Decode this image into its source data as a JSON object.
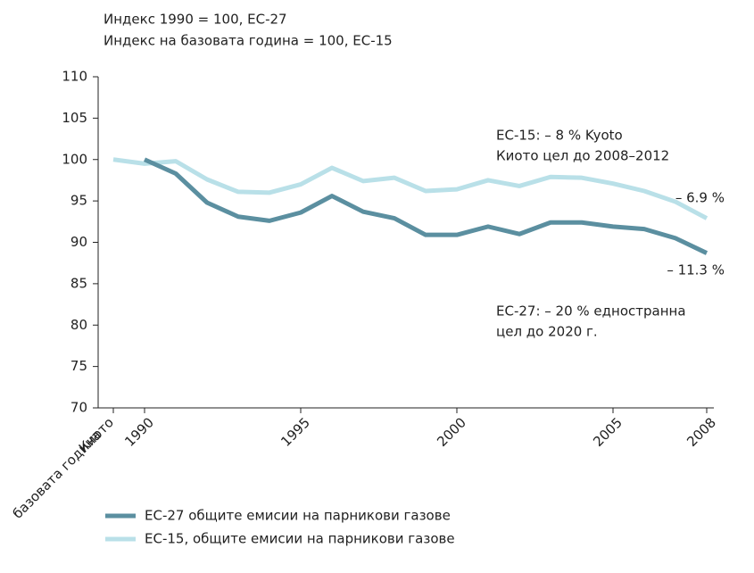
{
  "chart_data": {
    "type": "line",
    "header": [
      "Индекс 1990 = 100, ЕС-27",
      "Индекс на базовата година = 100, ЕС-15"
    ],
    "categories": [
      [
        "Киото",
        "базовата година"
      ],
      "1990",
      null,
      null,
      null,
      null,
      "1995",
      null,
      null,
      null,
      null,
      "2000",
      null,
      null,
      null,
      null,
      "2005",
      null,
      null,
      "2008"
    ],
    "series": [
      {
        "name": "ЕС-27 общите емисии на парникови газове",
        "color": "#5b8fa0",
        "values": [
          null,
          100,
          98.3,
          94.8,
          93.1,
          92.6,
          93.6,
          95.6,
          93.7,
          92.9,
          90.9,
          90.9,
          91.9,
          91.0,
          92.4,
          92.4,
          91.9,
          91.6,
          90.5,
          88.7
        ]
      },
      {
        "name": "ЕС-15, общите емисии на парникови газове",
        "color": "#b9e0e8",
        "values": [
          100,
          99.5,
          99.8,
          97.6,
          96.1,
          96.0,
          97.0,
          99.0,
          97.4,
          97.8,
          96.2,
          96.4,
          97.5,
          96.8,
          97.9,
          97.8,
          97.1,
          96.2,
          94.9,
          92.9
        ]
      }
    ],
    "ylim": [
      70,
      110
    ],
    "yticks": [
      70,
      75,
      80,
      85,
      90,
      95,
      100,
      105,
      110
    ],
    "annotations": [
      "ЕС-15: – 8 % Kyoto",
      "Киото  цел до 2008–2012",
      "– 6.9 %",
      "– 11.3 %",
      "ЕС-27: – 20 % едностранна",
      "цел до 2020 г."
    ]
  }
}
